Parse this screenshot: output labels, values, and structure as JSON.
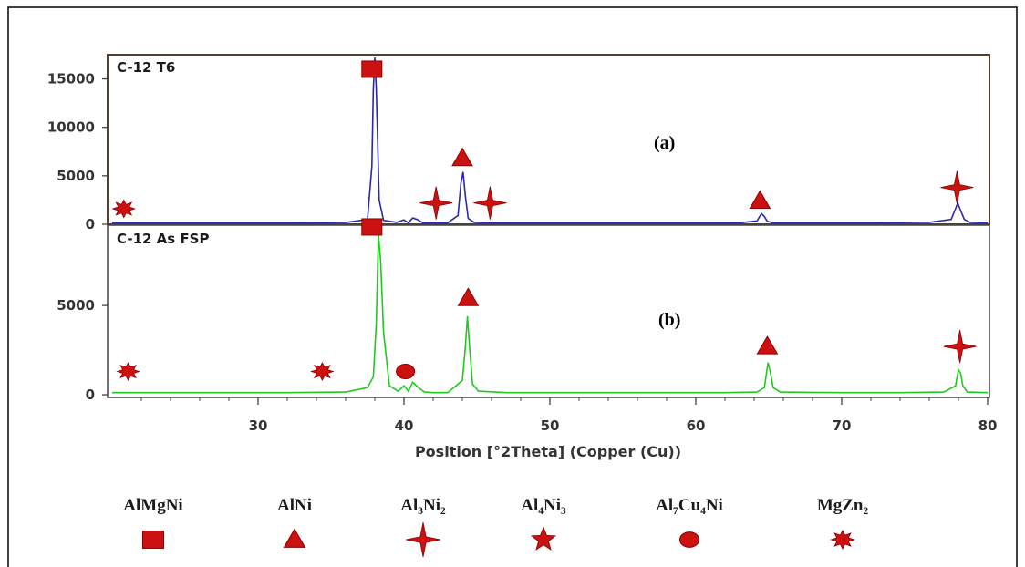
{
  "chart_data": [
    {
      "type": "line",
      "panel_title": "C-12 T6",
      "tag": "(a)",
      "xlim": [
        20,
        80
      ],
      "ylim": [
        0,
        17500
      ],
      "y_ticks": [
        0,
        5000,
        10000,
        15000
      ],
      "color": "#2a2aa8",
      "series": [
        {
          "x": [
            20,
            24,
            28,
            32,
            36,
            37.5,
            37.8,
            37.9,
            38.0,
            38.1,
            38.3,
            38.6,
            39.5,
            40.0,
            40.3,
            40.6,
            40.9,
            41.3,
            42,
            43,
            43.7,
            43.9,
            44.05,
            44.2,
            44.4,
            44.8,
            46,
            50,
            55,
            60,
            63,
            64.2,
            64.5,
            64.7,
            64.9,
            65.3,
            68,
            72,
            76,
            77.5,
            77.8,
            77.95,
            78.1,
            78.4,
            78.8,
            80
          ],
          "y": [
            150,
            150,
            150,
            150,
            180,
            500,
            6000,
            14000,
            17200,
            14000,
            2500,
            400,
            200,
            450,
            150,
            650,
            500,
            150,
            150,
            150,
            900,
            4200,
            5400,
            3000,
            600,
            200,
            150,
            150,
            150,
            150,
            150,
            350,
            1100,
            800,
            300,
            150,
            150,
            150,
            200,
            500,
            1600,
            2200,
            1600,
            500,
            200,
            150
          ]
        }
      ],
      "markers": [
        {
          "type": "MgZn2",
          "x": 20.8,
          "y": 1600
        },
        {
          "type": "AlMgNi",
          "x": 37.8,
          "y": 16000
        },
        {
          "type": "Al3Ni2",
          "x": 42.2,
          "y": 2200
        },
        {
          "type": "AlNi",
          "x": 44.0,
          "y": 6800
        },
        {
          "type": "Al3Ni2",
          "x": 45.9,
          "y": 2200
        },
        {
          "type": "AlNi",
          "x": 64.4,
          "y": 2400
        },
        {
          "type": "Al3Ni2",
          "x": 77.9,
          "y": 3800
        }
      ]
    },
    {
      "type": "line",
      "panel_title": "C-12 As FSP",
      "tag": "(b)",
      "xlim": [
        20,
        80
      ],
      "ylim": [
        0,
        9500
      ],
      "y_ticks": [
        0,
        5000
      ],
      "color": "#22c822",
      "series": [
        {
          "x": [
            20,
            24,
            28,
            32,
            36,
            37.5,
            37.9,
            38.1,
            38.25,
            38.4,
            38.6,
            39.0,
            39.6,
            40.0,
            40.3,
            40.6,
            41.0,
            41.4,
            42,
            43,
            44.0,
            44.2,
            44.35,
            44.5,
            44.7,
            45.1,
            47,
            52,
            57,
            62,
            64.2,
            64.7,
            64.95,
            65.1,
            65.3,
            65.8,
            70,
            74,
            77,
            77.8,
            78.0,
            78.15,
            78.3,
            78.6,
            80
          ],
          "y": [
            120,
            120,
            120,
            120,
            150,
            400,
            1000,
            4000,
            9000,
            7500,
            3500,
            500,
            200,
            500,
            200,
            700,
            400,
            150,
            120,
            120,
            800,
            2600,
            4400,
            2600,
            600,
            200,
            120,
            120,
            120,
            120,
            150,
            400,
            1800,
            1300,
            400,
            150,
            120,
            120,
            150,
            500,
            1400,
            1200,
            500,
            150,
            120
          ]
        }
      ],
      "markers": [
        {
          "type": "MgZn2",
          "x": 21.1,
          "y": 1300
        },
        {
          "type": "MgZn2",
          "x": 34.4,
          "y": 1300
        },
        {
          "type": "AlMgNi",
          "x": 37.8,
          "y": 9400
        },
        {
          "type": "Al7Cu4Ni",
          "x": 40.1,
          "y": 1300
        },
        {
          "type": "AlNi",
          "x": 44.4,
          "y": 5400
        },
        {
          "type": "AlNi",
          "x": 64.9,
          "y": 2700
        },
        {
          "type": "Al3Ni2",
          "x": 78.1,
          "y": 2700
        }
      ]
    }
  ],
  "x_axis": {
    "label": "Position [°2Theta] (Copper (Cu))",
    "ticks": [
      30,
      40,
      50,
      60,
      70,
      80
    ]
  },
  "legend": [
    {
      "type": "AlMgNi",
      "name": "AlMgNi",
      "icon": "square"
    },
    {
      "type": "AlNi",
      "name": "AlNi",
      "icon": "triangle"
    },
    {
      "type": "Al3Ni2",
      "name": "Al₃Ni₂",
      "icon": "four-point-star"
    },
    {
      "type": "Al4Ni3",
      "name": "Al₄Ni₃",
      "icon": "five-point-star"
    },
    {
      "type": "Al7Cu4Ni",
      "name": "Al₇Cu₄Ni",
      "icon": "ellipse"
    },
    {
      "type": "MgZn2",
      "name": "MgZn₂",
      "icon": "burst"
    }
  ],
  "colors": {
    "marker": "#cc1111",
    "marker_stroke": "#8a0000",
    "frame_a": "#5a3c2a",
    "axis": "#444444"
  }
}
